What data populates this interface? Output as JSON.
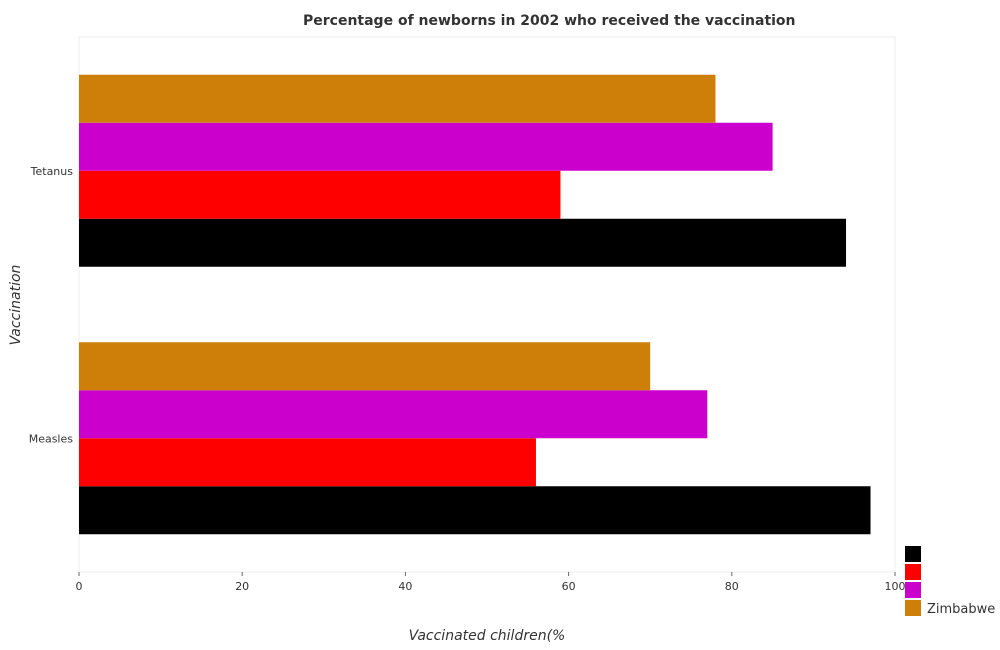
{
  "chart_data": {
    "type": "bar",
    "orientation": "horizontal",
    "title": "Percentage of newborns in 2002 who received the vaccination",
    "xlabel": "Vaccinated children(%",
    "ylabel": "Vaccination",
    "xlim": [
      0,
      100
    ],
    "xticks": [
      0,
      20,
      40,
      60,
      80,
      100
    ],
    "categories": [
      "Measles",
      "Tetanus"
    ],
    "series": [
      {
        "name": "",
        "color": "#000000",
        "values": [
          97,
          94
        ]
      },
      {
        "name": "",
        "color": "#ff0000",
        "values": [
          56,
          59
        ]
      },
      {
        "name": "",
        "color": "#cc00cc",
        "values": [
          77,
          85
        ]
      },
      {
        "name": "Zimbabwe",
        "color": "#cd7f0a",
        "values": [
          70,
          78
        ]
      }
    ],
    "legend_position": "bottom-right",
    "grid": false
  }
}
